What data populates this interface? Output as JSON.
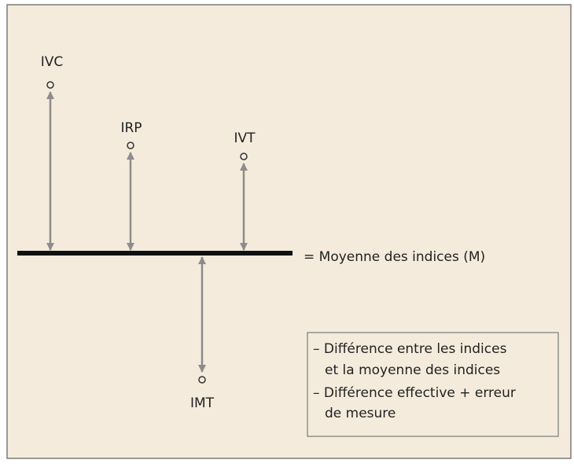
{
  "nodes": [
    {
      "label": "IVC"
    },
    {
      "label": "IRP"
    },
    {
      "label": "IVT"
    },
    {
      "label": "IMT"
    }
  ],
  "mean_label": "= Moyenne des indices (M)",
  "legend": {
    "lines": [
      "– Différence entre les indices",
      "et la moyenne des indices",
      "– Différence effective + erreur",
      "de mesure"
    ]
  }
}
